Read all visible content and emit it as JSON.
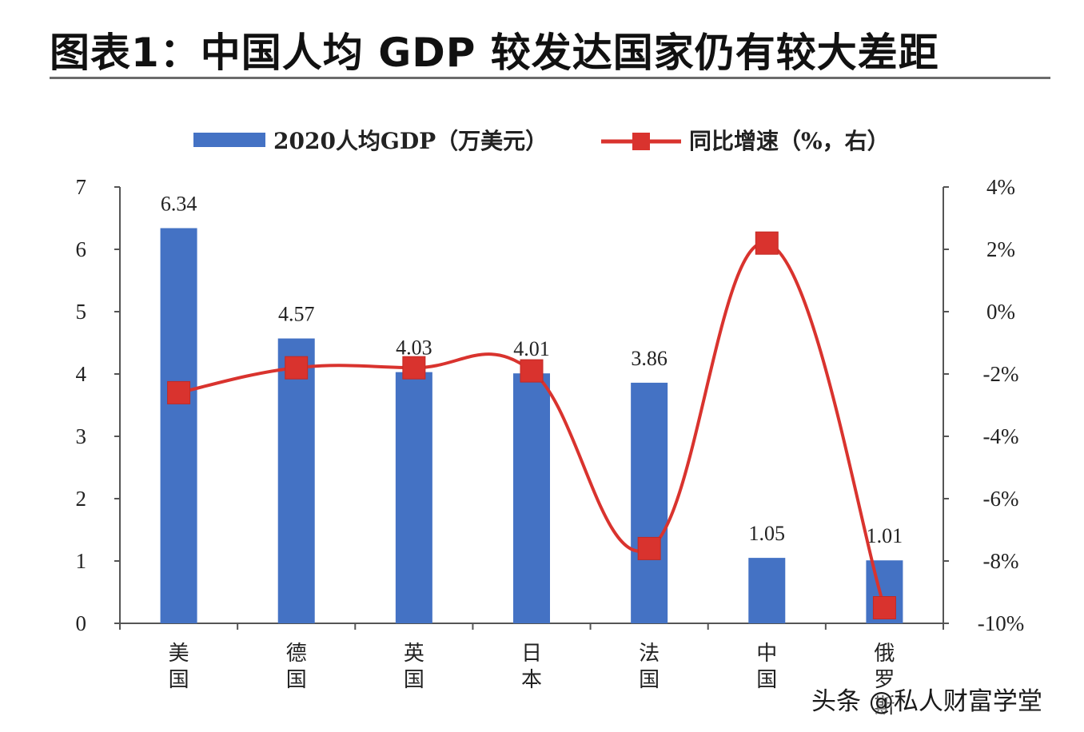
{
  "page": {
    "title": "图表1：中国人均 GDP 较发达国家仍有较大差距",
    "watermark": "头条 @私人财富学堂"
  },
  "chart_data": {
    "type": "bar",
    "title": "",
    "categories": [
      "美国",
      "德国",
      "英国",
      "日本",
      "法国",
      "中国",
      "俄罗斯"
    ],
    "series": [
      {
        "name": "2020人均GDP（万美元）",
        "type": "bar",
        "axis": "left",
        "color": "#4472c4",
        "values": [
          6.34,
          4.57,
          4.03,
          4.01,
          3.86,
          1.05,
          1.01
        ],
        "data_labels": [
          "6.34",
          "4.57",
          "4.03",
          "4.01",
          "3.86",
          "1.05",
          "1.01"
        ]
      },
      {
        "name": "同比增速（%，右）",
        "type": "line",
        "axis": "right",
        "color": "#d9332e",
        "marker": "square",
        "smooth": true,
        "values": [
          -2.6,
          -1.8,
          -1.8,
          -1.9,
          -7.6,
          2.2,
          -9.5
        ]
      }
    ],
    "y_left": {
      "ylim": [
        0,
        7
      ],
      "ticks": [
        "0",
        "1",
        "2",
        "3",
        "4",
        "5",
        "6",
        "7"
      ]
    },
    "y_right": {
      "ylim": [
        -10,
        4
      ],
      "ticks": [
        "-10%",
        "-8%",
        "-6%",
        "-4%",
        "-2%",
        "0%",
        "2%",
        "4%"
      ]
    },
    "legend": {
      "placement": "top"
    },
    "grid": false
  }
}
